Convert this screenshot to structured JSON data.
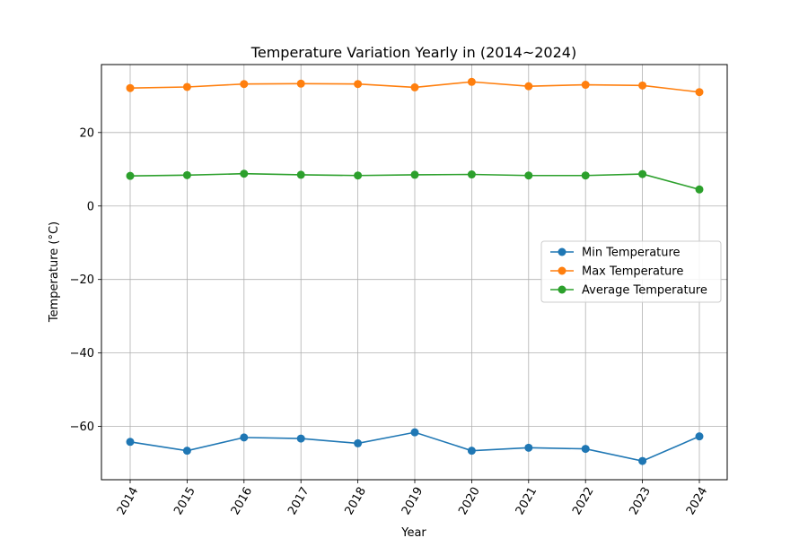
{
  "chart_data": {
    "type": "line",
    "title": "Temperature Variation Yearly in (2014~2024)",
    "xlabel": "Year",
    "ylabel": "Temperature (°C)",
    "x": [
      "2014",
      "2015",
      "2016",
      "2017",
      "2018",
      "2019",
      "2020",
      "2021",
      "2022",
      "2023",
      "2024"
    ],
    "ylim": [
      -74.5,
      38.5
    ],
    "yticks": [
      20,
      0,
      -20,
      -40,
      -60
    ],
    "ytick_labels": [
      "20",
      "0",
      "−20",
      "−40",
      "−60"
    ],
    "grid": true,
    "legend_position": "center-right",
    "series": [
      {
        "name": "Min Temperature",
        "color": "#1f77b4",
        "values": [
          -64.2,
          -66.6,
          -63.0,
          -63.3,
          -64.6,
          -61.6,
          -66.6,
          -65.8,
          -66.1,
          -69.4,
          -62.7
        ]
      },
      {
        "name": "Max Temperature",
        "color": "#ff7f0e",
        "values": [
          32.1,
          32.4,
          33.2,
          33.3,
          33.2,
          32.3,
          33.8,
          32.6,
          33.0,
          32.8,
          31.0
        ]
      },
      {
        "name": "Average Temperature",
        "color": "#2ca02c",
        "values": [
          8.2,
          8.4,
          8.8,
          8.5,
          8.3,
          8.5,
          8.6,
          8.3,
          8.3,
          8.7,
          4.5
        ]
      }
    ]
  }
}
